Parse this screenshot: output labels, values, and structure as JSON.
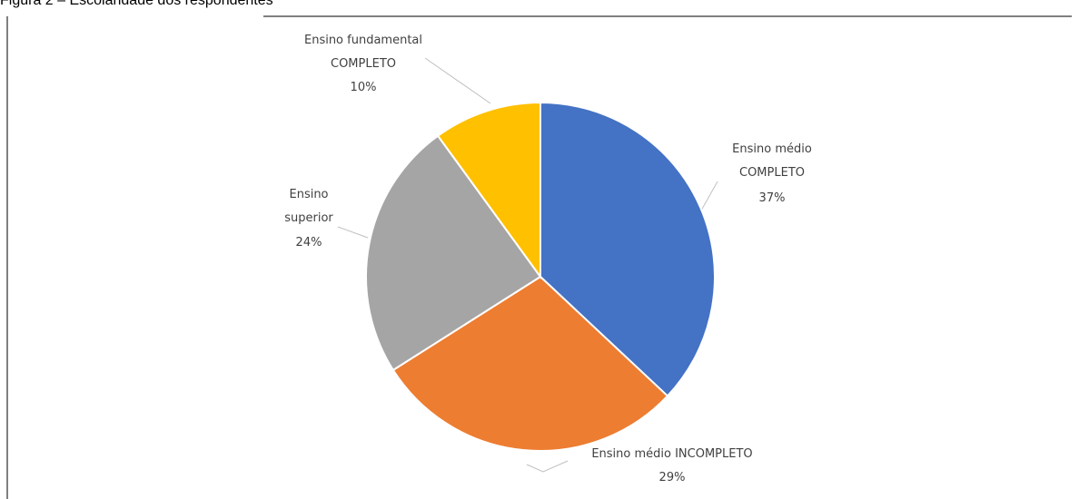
{
  "chart_data": {
    "type": "pie",
    "title": "Figura 2 – Escolaridade dos respondentes",
    "categories": [
      "Ensino médio COMPLETO",
      "Ensino médio INCOMPLETO",
      "Ensino superior",
      "Ensino fundamental COMPLETO"
    ],
    "values": [
      37,
      29,
      24,
      10
    ],
    "value_labels": [
      "37%",
      "29%",
      "24%",
      "10%"
    ],
    "colors": [
      "#4472c4",
      "#ed7d31",
      "#a5a5a5",
      "#ffc000"
    ]
  }
}
